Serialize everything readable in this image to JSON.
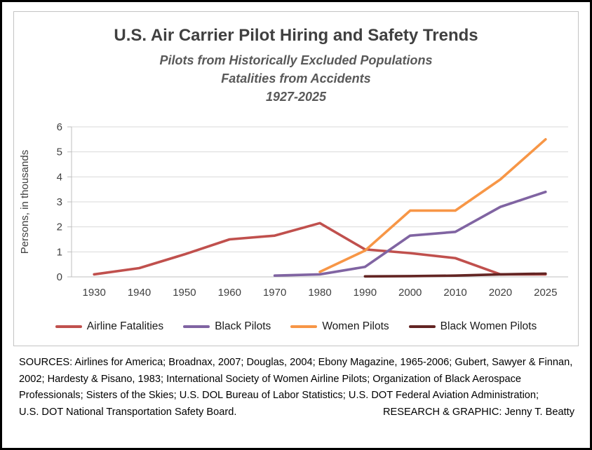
{
  "chart_data": {
    "type": "line",
    "title": "U.S. Air Carrier Pilot Hiring and Safety Trends",
    "subtitles": [
      "Pilots from Historically Excluded Populations",
      "Fatalities from Accidents",
      "1927-2025"
    ],
    "ylabel": "Persons, in thousands",
    "ylim": [
      0,
      6
    ],
    "yticks": [
      0,
      1,
      2,
      3,
      4,
      5,
      6
    ],
    "x_categories": [
      "1930",
      "1940",
      "1950",
      "1960",
      "1970",
      "1980",
      "1990",
      "2000",
      "2010",
      "2020",
      "2025"
    ],
    "grid": "horizontal",
    "legend_position": "bottom",
    "series": [
      {
        "name": "Airline Fatalities",
        "color": "#c0504d",
        "points": [
          [
            1930,
            0.1
          ],
          [
            1940,
            0.35
          ],
          [
            1950,
            0.9
          ],
          [
            1960,
            1.5
          ],
          [
            1970,
            1.65
          ],
          [
            1980,
            2.15
          ],
          [
            1990,
            1.1
          ],
          [
            2000,
            0.95
          ],
          [
            2010,
            0.75
          ],
          [
            2020,
            0.1
          ],
          [
            2025,
            0.1
          ]
        ]
      },
      {
        "name": "Black Pilots",
        "color": "#8064a2",
        "points": [
          [
            1970,
            0.05
          ],
          [
            1980,
            0.1
          ],
          [
            1990,
            0.4
          ],
          [
            2000,
            1.65
          ],
          [
            2010,
            1.8
          ],
          [
            2020,
            2.8
          ],
          [
            2025,
            3.4
          ]
        ]
      },
      {
        "name": "Women Pilots",
        "color": "#f79646",
        "points": [
          [
            1980,
            0.2
          ],
          [
            1990,
            1.05
          ],
          [
            2000,
            2.65
          ],
          [
            2010,
            2.65
          ],
          [
            2020,
            3.9
          ],
          [
            2025,
            5.5
          ]
        ]
      },
      {
        "name": "Black Women Pilots",
        "color": "#632523",
        "points": [
          [
            1990,
            0.02
          ],
          [
            2000,
            0.03
          ],
          [
            2010,
            0.05
          ],
          [
            2020,
            0.1
          ],
          [
            2025,
            0.13
          ]
        ]
      }
    ]
  },
  "footer": {
    "lines": [
      "SOURCES: Airlines for America; Broadnax, 2007; Douglas, 2004; Ebony Magazine, 1965-2006; Gubert, Sawyer & Finnan,",
      "2002; Hardesty & Pisano, 1983; International Society of Women Airline Pilots; Organization of Black Aerospace",
      "Professionals; Sisters of the Skies; U.S. DOL Bureau of Labor Statistics; U.S. DOT Federal Aviation Administration;",
      "U.S. DOT National Transportation Safety Board."
    ],
    "credit": "RESEARCH & GRAPHIC: Jenny T. Beatty"
  }
}
